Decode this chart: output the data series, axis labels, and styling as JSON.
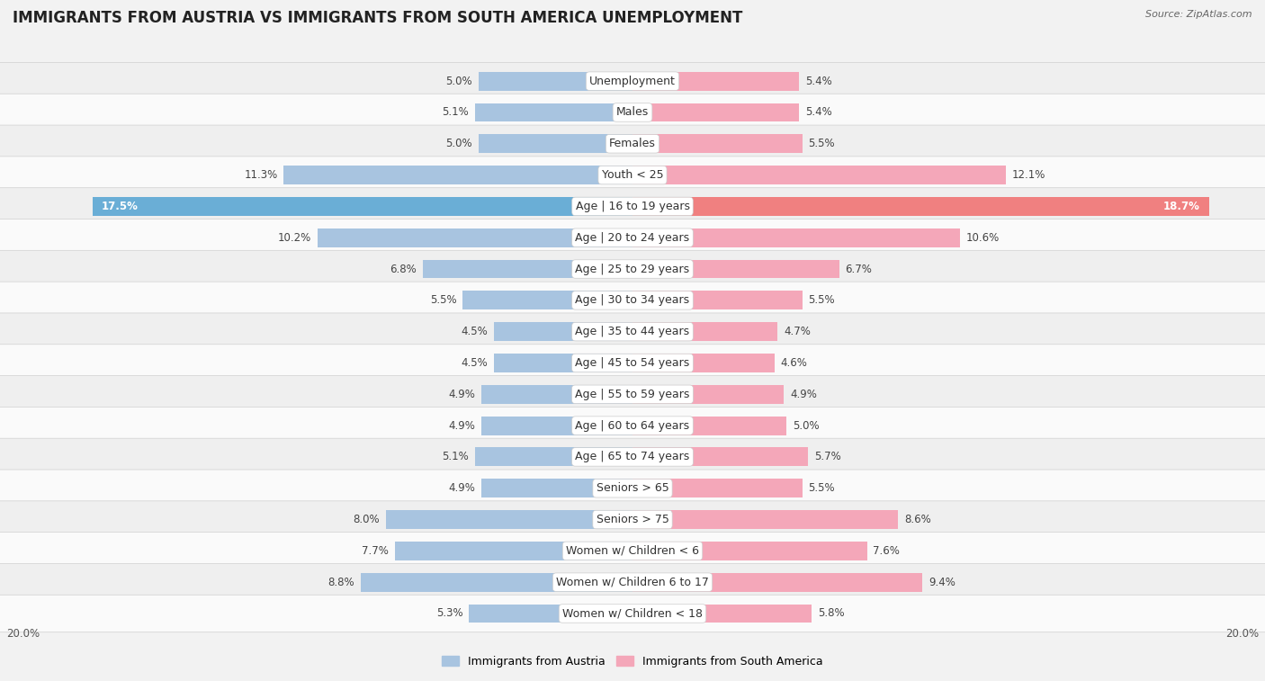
{
  "title": "IMMIGRANTS FROM AUSTRIA VS IMMIGRANTS FROM SOUTH AMERICA UNEMPLOYMENT",
  "source": "Source: ZipAtlas.com",
  "categories": [
    "Unemployment",
    "Males",
    "Females",
    "Youth < 25",
    "Age | 16 to 19 years",
    "Age | 20 to 24 years",
    "Age | 25 to 29 years",
    "Age | 30 to 34 years",
    "Age | 35 to 44 years",
    "Age | 45 to 54 years",
    "Age | 55 to 59 years",
    "Age | 60 to 64 years",
    "Age | 65 to 74 years",
    "Seniors > 65",
    "Seniors > 75",
    "Women w/ Children < 6",
    "Women w/ Children 6 to 17",
    "Women w/ Children < 18"
  ],
  "austria_values": [
    5.0,
    5.1,
    5.0,
    11.3,
    17.5,
    10.2,
    6.8,
    5.5,
    4.5,
    4.5,
    4.9,
    4.9,
    5.1,
    4.9,
    8.0,
    7.7,
    8.8,
    5.3
  ],
  "south_america_values": [
    5.4,
    5.4,
    5.5,
    12.1,
    18.7,
    10.6,
    6.7,
    5.5,
    4.7,
    4.6,
    4.9,
    5.0,
    5.7,
    5.5,
    8.6,
    7.6,
    9.4,
    5.8
  ],
  "austria_color": "#a8c4e0",
  "south_america_color": "#f4a7b9",
  "highlight_austria_color": "#6aaed6",
  "highlight_sa_color": "#f08080",
  "austria_label": "Immigrants from Austria",
  "south_america_label": "Immigrants from South America",
  "x_max": 20.0,
  "axis_label_x_max": "20.0%",
  "background_row_even": "#efefef",
  "background_row_odd": "#fafafa",
  "title_fontsize": 12,
  "label_fontsize": 9,
  "value_fontsize": 8.5,
  "legend_fontsize": 9
}
